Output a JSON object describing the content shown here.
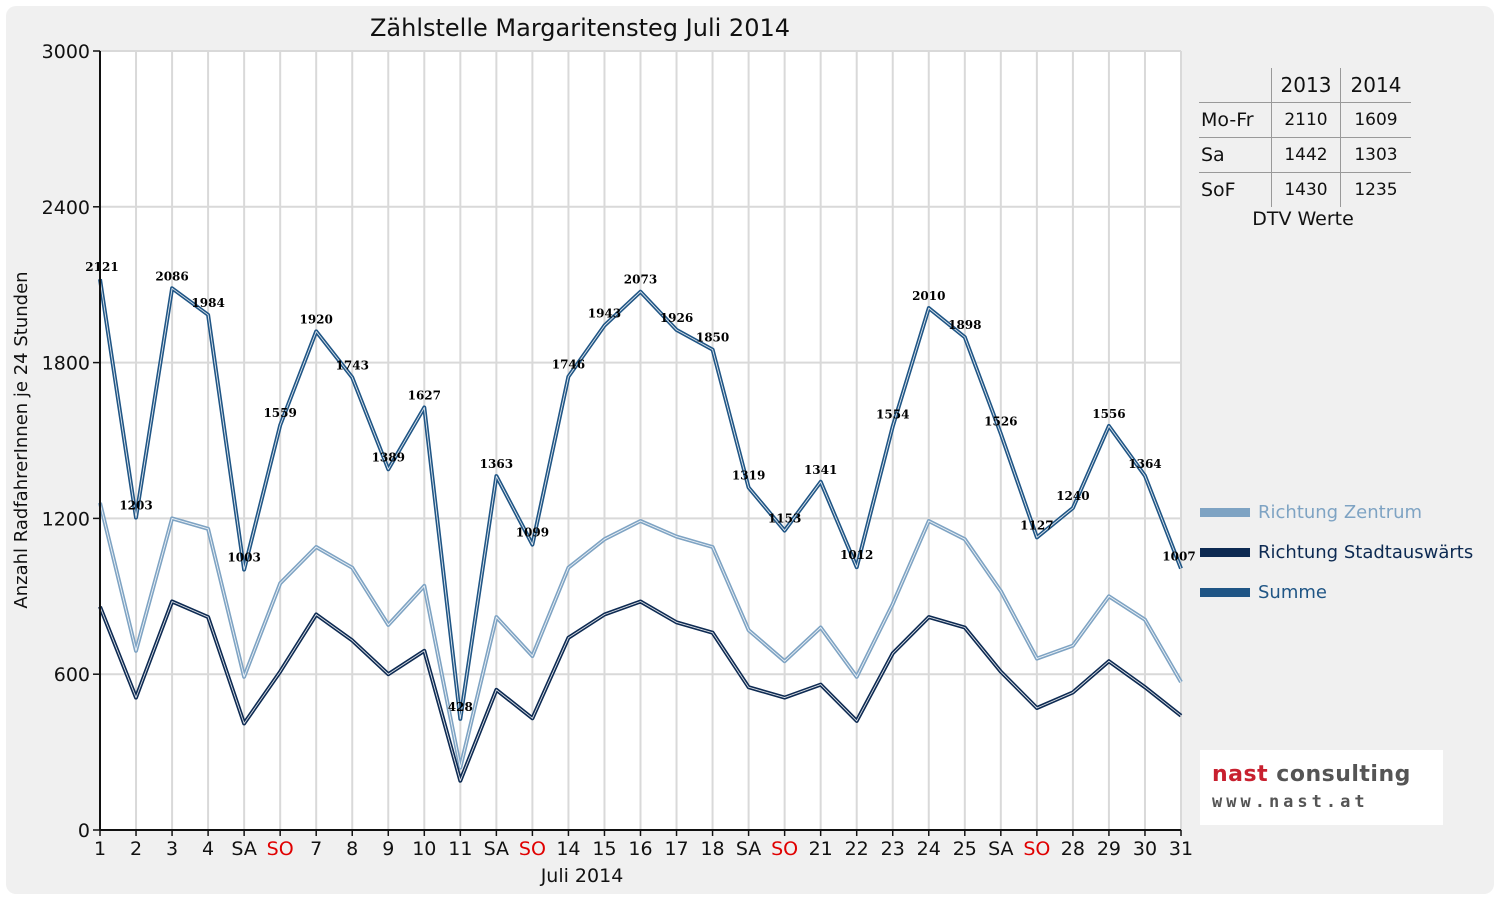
{
  "chart_data": {
    "type": "line",
    "title": "Zählstelle Margaritensteg Juli 2014",
    "xlabel": "Juli 2014",
    "ylabel": "Anzahl RadfahrerInnen je 24 Stunden",
    "ylim": [
      0,
      3000
    ],
    "yticks": [
      0,
      600,
      1200,
      1800,
      2400,
      3000
    ],
    "grid": true,
    "legend_position": "right",
    "categories": [
      "1",
      "2",
      "3",
      "4",
      "SA",
      "SO",
      "7",
      "8",
      "9",
      "10",
      "11",
      "SA",
      "SO",
      "14",
      "15",
      "16",
      "17",
      "18",
      "SA",
      "SO",
      "21",
      "22",
      "23",
      "24",
      "25",
      "SA",
      "SO",
      "28",
      "29",
      "30",
      "31"
    ],
    "weekend_labels_red": [
      "SO"
    ],
    "series": [
      {
        "name": "Richtung Zentrum",
        "color": "#7ea3c3",
        "values": [
          1260,
          690,
          1200,
          1160,
          590,
          950,
          1090,
          1010,
          790,
          940,
          240,
          820,
          670,
          1010,
          1120,
          1190,
          1130,
          1090,
          770,
          650,
          780,
          590,
          870,
          1190,
          1120,
          920,
          660,
          710,
          900,
          810,
          570
        ]
      },
      {
        "name": "Richtung Stadtauswärts",
        "color": "#0d2a52",
        "values": [
          860,
          510,
          880,
          820,
          410,
          610,
          830,
          730,
          600,
          690,
          190,
          540,
          430,
          740,
          830,
          880,
          800,
          760,
          550,
          510,
          560,
          420,
          680,
          820,
          780,
          610,
          470,
          530,
          650,
          550,
          440
        ]
      },
      {
        "name": "Summe",
        "color": "#1f5585",
        "values": [
          2121,
          1203,
          2086,
          1984,
          1003,
          1559,
          1920,
          1743,
          1389,
          1627,
          428,
          1363,
          1099,
          1746,
          1943,
          2073,
          1926,
          1850,
          1319,
          1153,
          1341,
          1012,
          1554,
          2010,
          1898,
          1526,
          1127,
          1240,
          1556,
          1364,
          1007
        ]
      }
    ],
    "data_labels": [
      "2121",
      "1203",
      "2086",
      "1984",
      "1003",
      "1559",
      "1920",
      "1743",
      "1389",
      "1627",
      "428",
      "1363",
      "1099",
      "1746",
      "1943",
      "2073",
      "1926",
      "1850",
      "1319",
      "1153",
      "1341",
      "1012",
      "1554",
      "2010",
      "1898",
      "1526",
      "1127",
      "1240",
      "1556",
      "1364",
      "1007"
    ]
  },
  "dtv_table": {
    "columns": [
      "2013",
      "2014"
    ],
    "rows": [
      {
        "label": "Mo-Fr",
        "v2013": "2110",
        "v2014": "1609"
      },
      {
        "label": "Sa",
        "v2013": "1442",
        "v2014": "1303"
      },
      {
        "label": "SoF",
        "v2013": "1430",
        "v2014": "1235"
      }
    ],
    "caption": "DTV Werte"
  },
  "logo": {
    "line1_red": "nast",
    "line1_rest": " consulting",
    "line2": "www.nast.at"
  }
}
